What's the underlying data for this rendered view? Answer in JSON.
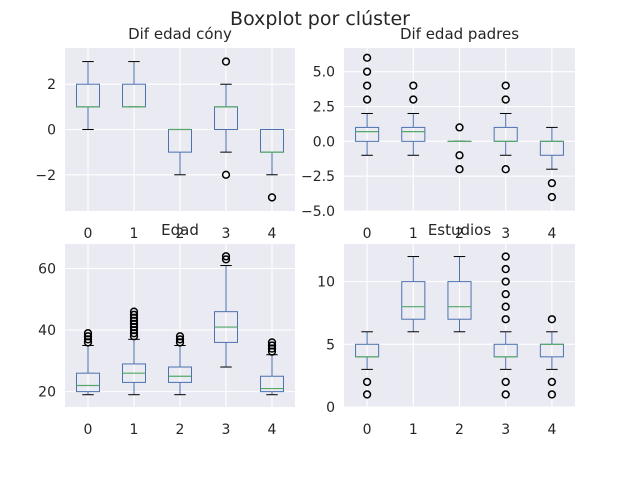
{
  "title": "Boxplot por clúster",
  "colors": {
    "axes_bg": "#eaeaf2",
    "grid": "#ffffff",
    "box": "#4c72b0",
    "median": "#55a868",
    "flier": "#000000"
  },
  "chart_data": [
    {
      "type": "box",
      "title": "Dif edad cóny",
      "categories": [
        "0",
        "1",
        "2",
        "3",
        "4"
      ],
      "ylim": [
        -3.6,
        3.6
      ],
      "yticks": [
        -2,
        0,
        2
      ],
      "ytick_labels": [
        "−2",
        "0",
        "2"
      ],
      "boxes": [
        {
          "whislo": 0,
          "q1": 1,
          "med": 1,
          "q3": 2,
          "whishi": 3,
          "fliers": []
        },
        {
          "whislo": 1,
          "q1": 1,
          "med": 1,
          "q3": 2,
          "whishi": 3,
          "fliers": []
        },
        {
          "whislo": -2,
          "q1": -1,
          "med": 0,
          "q3": 0,
          "whishi": 0,
          "fliers": []
        },
        {
          "whislo": -1,
          "q1": 0,
          "med": 1,
          "q3": 1,
          "whishi": 2,
          "fliers": [
            -2,
            3
          ]
        },
        {
          "whislo": -2,
          "q1": -1,
          "med": -1,
          "q3": 0,
          "whishi": 0,
          "fliers": [
            -3
          ]
        }
      ]
    },
    {
      "type": "box",
      "title": "Dif edad padres",
      "categories": [
        "0",
        "1",
        "2",
        "3",
        "4"
      ],
      "ylim": [
        -5,
        6.7
      ],
      "yticks": [
        -5,
        -2.5,
        0,
        2.5,
        5
      ],
      "ytick_labels": [
        "−5.0",
        "−2.5",
        "0.0",
        "2.5",
        "5.0"
      ],
      "boxes": [
        {
          "whislo": -1,
          "q1": 0,
          "med": 0.7,
          "q3": 1,
          "whishi": 2,
          "fliers": [
            3,
            4,
            5,
            6
          ]
        },
        {
          "whislo": -1,
          "q1": 0,
          "med": 0.7,
          "q3": 1,
          "whishi": 2,
          "fliers": [
            3,
            4
          ]
        },
        {
          "whislo": 0,
          "q1": 0,
          "med": 0,
          "q3": 0,
          "whishi": 0,
          "fliers": [
            -2,
            -1,
            1
          ]
        },
        {
          "whislo": -1,
          "q1": 0,
          "med": 0,
          "q3": 1,
          "whishi": 2,
          "fliers": [
            -2,
            3,
            4
          ]
        },
        {
          "whislo": -2,
          "q1": -1,
          "med": 0,
          "q3": 0,
          "whishi": 1,
          "fliers": [
            -3,
            -4
          ]
        }
      ]
    },
    {
      "type": "box",
      "title": "Edad",
      "categories": [
        "0",
        "1",
        "2",
        "3",
        "4"
      ],
      "ylim": [
        15,
        68
      ],
      "yticks": [
        20,
        40,
        60
      ],
      "ytick_labels": [
        "20",
        "40",
        "60"
      ],
      "boxes": [
        {
          "whislo": 19,
          "q1": 20,
          "med": 22,
          "q3": 26,
          "whishi": 35,
          "fliers": [
            36,
            37,
            38,
            39
          ]
        },
        {
          "whislo": 19,
          "q1": 23,
          "med": 26,
          "q3": 29,
          "whishi": 37,
          "fliers": [
            38,
            39,
            40,
            41,
            42,
            43,
            44,
            45,
            46
          ]
        },
        {
          "whislo": 19,
          "q1": 23,
          "med": 25,
          "q3": 28,
          "whishi": 35,
          "fliers": [
            36,
            37,
            38
          ]
        },
        {
          "whislo": 28,
          "q1": 36,
          "med": 41,
          "q3": 46,
          "whishi": 61,
          "fliers": [
            63,
            64
          ]
        },
        {
          "whislo": 19,
          "q1": 20,
          "med": 21,
          "q3": 25,
          "whishi": 32,
          "fliers": [
            33,
            34,
            35,
            36
          ]
        }
      ]
    },
    {
      "type": "box",
      "title": "Estudios",
      "categories": [
        "0",
        "1",
        "2",
        "3",
        "4"
      ],
      "ylim": [
        0,
        13
      ],
      "yticks": [
        0,
        5,
        10
      ],
      "ytick_labels": [
        "0",
        "5",
        "10"
      ],
      "boxes": [
        {
          "whislo": 3,
          "q1": 4,
          "med": 4,
          "q3": 5,
          "whishi": 6,
          "fliers": [
            1,
            2
          ]
        },
        {
          "whislo": 6,
          "q1": 7,
          "med": 8,
          "q3": 10,
          "whishi": 12,
          "fliers": []
        },
        {
          "whislo": 6,
          "q1": 7,
          "med": 8,
          "q3": 10,
          "whishi": 12,
          "fliers": []
        },
        {
          "whislo": 3,
          "q1": 4,
          "med": 4,
          "q3": 5,
          "whishi": 6,
          "fliers": [
            1,
            2,
            7,
            8,
            9,
            10,
            11,
            12
          ]
        },
        {
          "whislo": 3,
          "q1": 4,
          "med": 5,
          "q3": 5,
          "whishi": 6,
          "fliers": [
            1,
            2,
            7
          ]
        }
      ]
    }
  ]
}
